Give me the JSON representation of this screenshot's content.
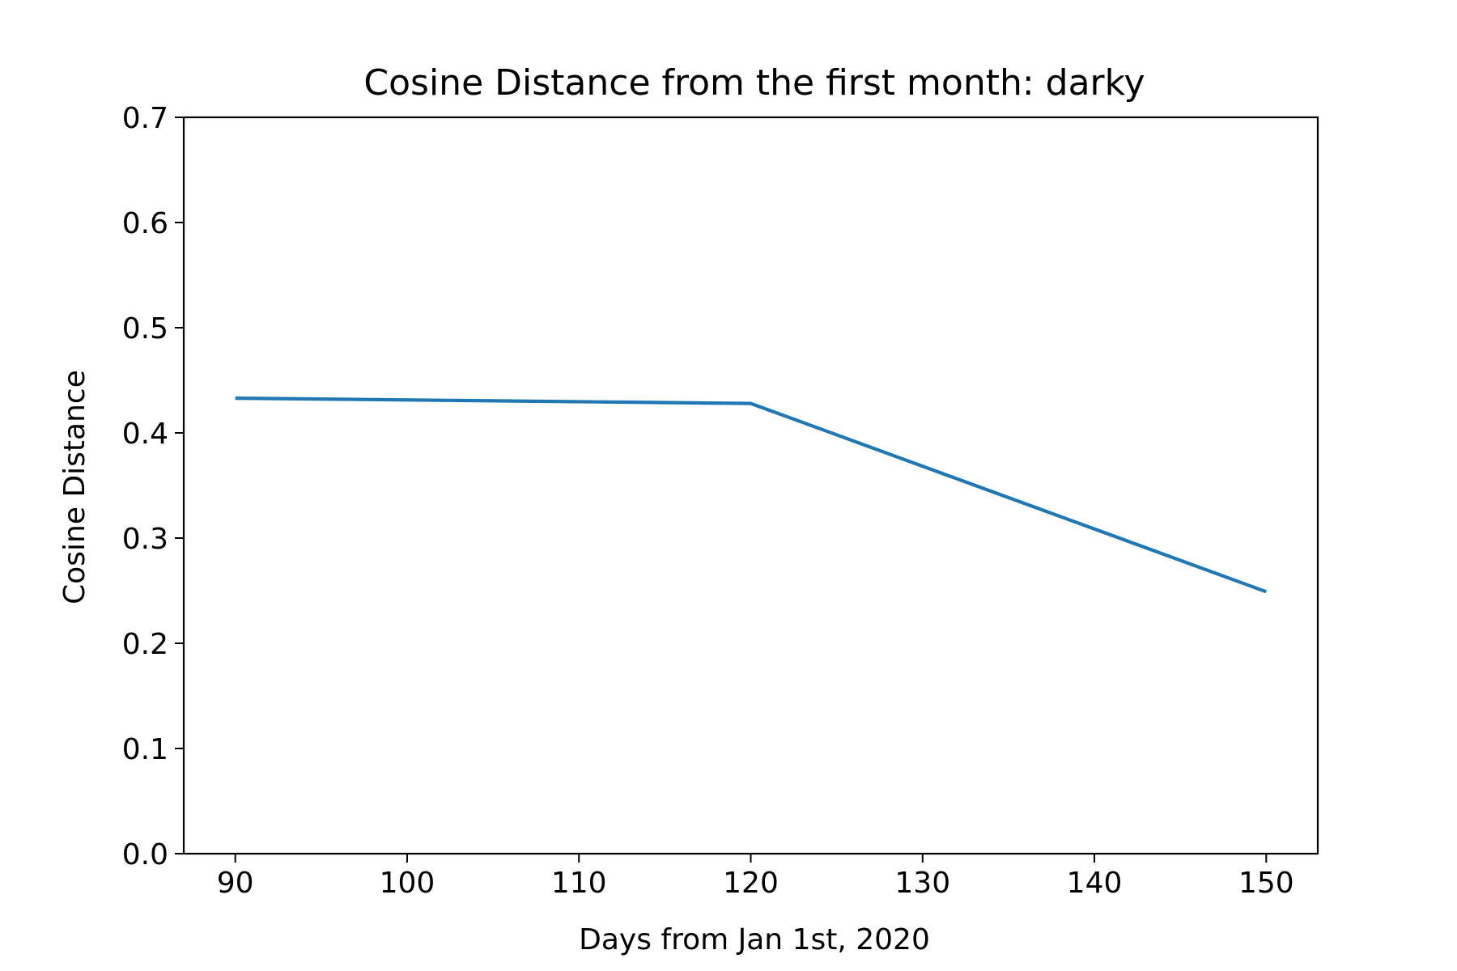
{
  "chart_data": {
    "type": "line",
    "title": "Cosine Distance from the first month: darky",
    "xlabel": "Days from Jan 1st, 2020",
    "ylabel": "Cosine Distance",
    "xlim": [
      87,
      153
    ],
    "ylim": [
      0.0,
      0.7
    ],
    "xticks": [
      "90",
      "100",
      "110",
      "120",
      "130",
      "140",
      "150"
    ],
    "yticks": [
      "0.0",
      "0.1",
      "0.2",
      "0.3",
      "0.4",
      "0.5",
      "0.6",
      "0.7"
    ],
    "grid": false,
    "series": [
      {
        "x": [
          90,
          120,
          150
        ],
        "y": [
          0.433,
          0.428,
          0.249
        ],
        "color": "#1f77b4"
      }
    ]
  }
}
